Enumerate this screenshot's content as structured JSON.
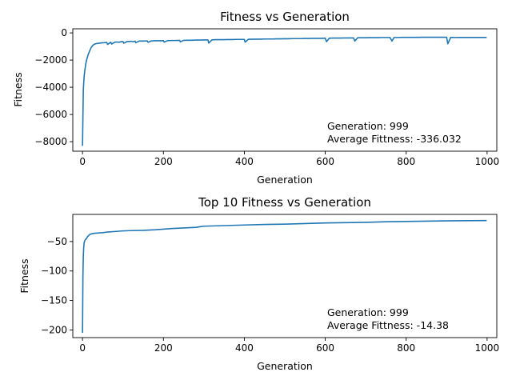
{
  "chart_data": [
    {
      "type": "line",
      "title": "Fitness vs Generation",
      "xlabel": "Generation",
      "ylabel": "Fitness",
      "xlim": [
        -24,
        1024
      ],
      "ylim": [
        -8700,
        300
      ],
      "xticks": [
        0,
        200,
        400,
        600,
        800,
        1000
      ],
      "xtick_labels": [
        "0",
        "200",
        "400",
        "600",
        "800",
        "1000"
      ],
      "yticks": [
        0,
        -2000,
        -4000,
        -6000,
        -8000
      ],
      "ytick_labels": [
        "0",
        "−2000",
        "−4000",
        "−6000",
        "−8000"
      ],
      "grid": false,
      "annotation": [
        "Generation: 999",
        "Average Fittness: -336.032"
      ],
      "color": "#1f77b4",
      "series": [
        {
          "x": [
            0,
            1,
            2,
            4,
            6,
            8,
            10,
            14,
            18,
            22,
            26,
            30,
            35,
            40,
            45,
            50,
            55,
            60,
            62,
            70,
            72,
            80,
            85,
            90,
            95,
            100,
            102,
            110,
            115,
            120,
            125,
            130,
            132,
            140,
            150,
            160,
            162,
            170,
            180,
            190,
            200,
            202,
            210,
            220,
            230,
            240,
            242,
            250,
            260,
            270,
            280,
            290,
            300,
            310,
            312,
            320,
            330,
            340,
            350,
            360,
            370,
            380,
            390,
            400,
            402,
            410,
            420,
            430,
            440,
            450,
            460,
            470,
            480,
            490,
            500,
            510,
            520,
            530,
            540,
            550,
            560,
            570,
            580,
            590,
            600,
            603,
            610,
            620,
            630,
            640,
            650,
            660,
            670,
            673,
            680,
            690,
            700,
            710,
            720,
            730,
            740,
            750,
            760,
            765,
            770,
            780,
            790,
            800,
            810,
            820,
            830,
            840,
            850,
            860,
            870,
            880,
            890,
            900,
            903,
            910,
            920,
            930,
            940,
            950,
            960,
            970,
            980,
            990,
            999
          ],
          "y": [
            -8300,
            -6200,
            -4200,
            -3200,
            -2700,
            -2300,
            -2000,
            -1600,
            -1300,
            -1050,
            -900,
            -820,
            -780,
            -760,
            -740,
            -730,
            -720,
            -700,
            -850,
            -690,
            -820,
            -680,
            -670,
            -690,
            -650,
            -640,
            -760,
            -640,
            -630,
            -620,
            -650,
            -610,
            -720,
            -600,
            -600,
            -590,
            -690,
            -590,
            -580,
            -580,
            -570,
            -680,
            -570,
            -560,
            -560,
            -550,
            -660,
            -550,
            -540,
            -540,
            -530,
            -530,
            -520,
            -520,
            -750,
            -510,
            -500,
            -500,
            -500,
            -490,
            -490,
            -480,
            -480,
            -480,
            -680,
            -470,
            -470,
            -460,
            -460,
            -450,
            -450,
            -450,
            -440,
            -440,
            -430,
            -430,
            -420,
            -420,
            -420,
            -410,
            -410,
            -400,
            -400,
            -400,
            -390,
            -650,
            -390,
            -380,
            -380,
            -380,
            -370,
            -370,
            -370,
            -600,
            -360,
            -360,
            -360,
            -350,
            -350,
            -350,
            -340,
            -340,
            -340,
            -600,
            -340,
            -340,
            -330,
            -330,
            -330,
            -330,
            -330,
            -320,
            -320,
            -320,
            -320,
            -320,
            -320,
            -320,
            -800,
            -330,
            -340,
            -335,
            -336,
            -336,
            -336,
            -336,
            -336,
            -336,
            -336.032
          ]
        }
      ]
    },
    {
      "type": "line",
      "title": "Top 10 Fitness vs Generation",
      "xlabel": "Generation",
      "ylabel": "Fitness",
      "xlim": [
        -24,
        1024
      ],
      "ylim": [
        -213,
        -4
      ],
      "xticks": [
        0,
        200,
        400,
        600,
        800,
        1000
      ],
      "xtick_labels": [
        "0",
        "200",
        "400",
        "600",
        "800",
        "1000"
      ],
      "yticks": [
        -50,
        -100,
        -150,
        -200
      ],
      "ytick_labels": [
        "−50",
        "−100",
        "−150",
        "−200"
      ],
      "grid": false,
      "annotation": [
        "Generation: 999",
        "Average Fittness: -14.38"
      ],
      "color": "#1f77b4",
      "series": [
        {
          "x": [
            0,
            1,
            2,
            3,
            4,
            6,
            8,
            10,
            12,
            15,
            18,
            22,
            26,
            30,
            40,
            50,
            60,
            80,
            100,
            120,
            150,
            180,
            200,
            220,
            250,
            280,
            290,
            300,
            350,
            400,
            450,
            500,
            550,
            600,
            650,
            700,
            750,
            800,
            850,
            900,
            950,
            999
          ],
          "y": [
            -205,
            -110,
            -75,
            -60,
            -52,
            -48,
            -46,
            -45,
            -42,
            -40,
            -38,
            -37,
            -36.5,
            -36,
            -35.5,
            -35,
            -34,
            -33,
            -32,
            -31.5,
            -31,
            -30,
            -29,
            -28,
            -27,
            -26,
            -25,
            -24,
            -23,
            -22,
            -21,
            -20.5,
            -19.5,
            -18.5,
            -18,
            -17.5,
            -16.5,
            -16,
            -15.5,
            -15,
            -14.6,
            -14.38
          ]
        }
      ]
    }
  ]
}
